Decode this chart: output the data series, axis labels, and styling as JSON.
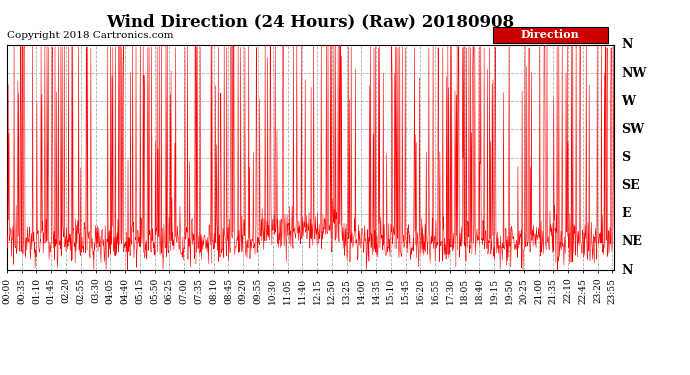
{
  "title": "Wind Direction (24 Hours) (Raw) 20180908",
  "copyright": "Copyright 2018 Cartronics.com",
  "legend_label": "Direction",
  "ytick_labels": [
    "N",
    "NE",
    "E",
    "SE",
    "S",
    "SW",
    "W",
    "NW",
    "N"
  ],
  "ytick_values": [
    0,
    45,
    90,
    135,
    180,
    225,
    270,
    315,
    360
  ],
  "ylim": [
    0,
    360
  ],
  "background_color": "#ffffff",
  "line_color": "#ff0000",
  "grid_color": "#b0b0b0",
  "title_fontsize": 12,
  "copyright_fontsize": 7.5,
  "ytick_fontsize": 9,
  "xtick_fontsize": 6.5,
  "xtick_interval_minutes": 35,
  "legend_bg": "#cc0000",
  "legend_text_color": "#ffffff"
}
